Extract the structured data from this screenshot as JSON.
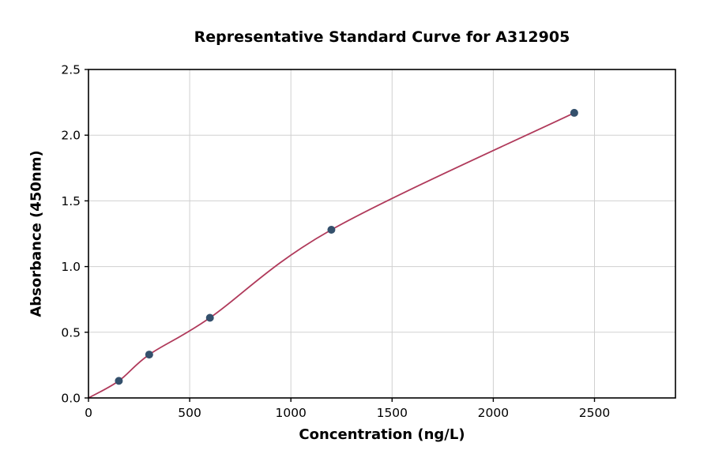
{
  "chart_data": {
    "type": "scatter",
    "title": "Representative Standard Curve for A312905",
    "xlabel": "Concentration (ng/L)",
    "ylabel": "Absorbance (450nm)",
    "xlim": [
      0,
      2900
    ],
    "ylim": [
      0,
      2.5
    ],
    "grid": true,
    "legend": "none",
    "x_ticks": [
      0,
      500,
      1000,
      1500,
      2000,
      2500
    ],
    "x_tick_labels": [
      "0",
      "500",
      "1000",
      "1500",
      "2000",
      "2500"
    ],
    "y_ticks": [
      0.0,
      0.5,
      1.0,
      1.5,
      2.0,
      2.5
    ],
    "y_tick_labels": [
      "0.0",
      "0.5",
      "1.0",
      "1.5",
      "2.0",
      "2.5"
    ],
    "points": {
      "x": [
        150,
        300,
        600,
        1200,
        2400
      ],
      "y": [
        0.13,
        0.33,
        0.61,
        1.28,
        2.17
      ]
    },
    "curve": {
      "x": [
        0,
        150,
        300,
        600,
        1200,
        2400
      ],
      "y": [
        0.0,
        0.13,
        0.33,
        0.61,
        1.28,
        2.17
      ]
    },
    "colors": {
      "curve": "#b03a5b",
      "points": "#34506c",
      "grid": "#d0d0d0",
      "axis": "#000000",
      "background": "#ffffff"
    }
  }
}
